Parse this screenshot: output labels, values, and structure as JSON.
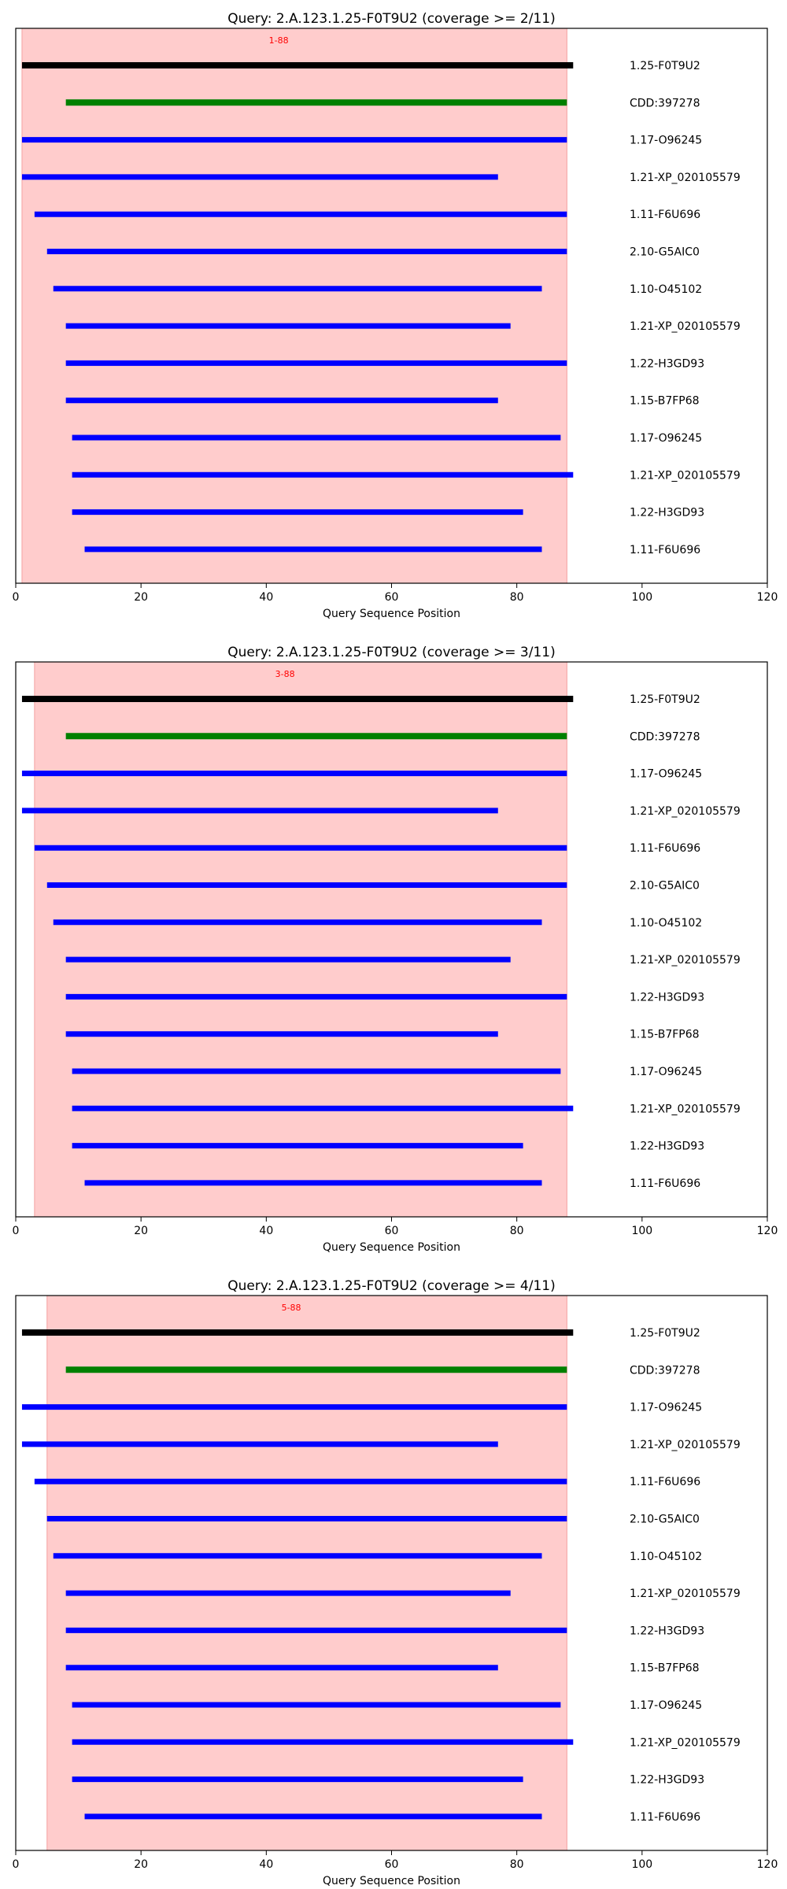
{
  "chart_data": [
    {
      "type": "bar",
      "title": "Query: 2.A.123.1.25-F0T9U2 (coverage >= 2/11)",
      "xlabel": "Query Sequence Position",
      "ylabel": "",
      "xlim": [
        0,
        120
      ],
      "xticks": [
        "0",
        "20",
        "40",
        "60",
        "80",
        "100",
        "120"
      ],
      "region": {
        "start": 1,
        "end": 88,
        "label": "1-88",
        "color": "#ffcccc"
      },
      "colors": {
        "query": "#000000",
        "domain": "#008000",
        "hit": "#0000ff",
        "region_label": "#ff0000"
      },
      "rows": [
        {
          "label": "1.25-F0T9U2",
          "start": 1,
          "end": 89,
          "kind": "query"
        },
        {
          "label": "CDD:397278",
          "start": 8,
          "end": 88,
          "kind": "domain"
        },
        {
          "label": "1.17-O96245",
          "start": 1,
          "end": 88,
          "kind": "hit"
        },
        {
          "label": "1.21-XP_020105579",
          "start": 1,
          "end": 77,
          "kind": "hit"
        },
        {
          "label": "1.11-F6U696",
          "start": 3,
          "end": 88,
          "kind": "hit"
        },
        {
          "label": "2.10-G5AIC0",
          "start": 5,
          "end": 88,
          "kind": "hit"
        },
        {
          "label": "1.10-O45102",
          "start": 6,
          "end": 84,
          "kind": "hit"
        },
        {
          "label": "1.21-XP_020105579",
          "start": 8,
          "end": 79,
          "kind": "hit"
        },
        {
          "label": "1.22-H3GD93",
          "start": 8,
          "end": 88,
          "kind": "hit"
        },
        {
          "label": "1.15-B7FP68",
          "start": 8,
          "end": 77,
          "kind": "hit"
        },
        {
          "label": "1.17-O96245",
          "start": 9,
          "end": 87,
          "kind": "hit"
        },
        {
          "label": "1.21-XP_020105579",
          "start": 9,
          "end": 89,
          "kind": "hit"
        },
        {
          "label": "1.22-H3GD93",
          "start": 9,
          "end": 81,
          "kind": "hit"
        },
        {
          "label": "1.11-F6U696",
          "start": 11,
          "end": 84,
          "kind": "hit"
        }
      ]
    },
    {
      "type": "bar",
      "title": "Query: 2.A.123.1.25-F0T9U2 (coverage >= 3/11)",
      "xlabel": "Query Sequence Position",
      "ylabel": "",
      "xlim": [
        0,
        120
      ],
      "xticks": [
        "0",
        "20",
        "40",
        "60",
        "80",
        "100",
        "120"
      ],
      "region": {
        "start": 3,
        "end": 88,
        "label": "3-88",
        "color": "#ffcccc"
      },
      "colors": {
        "query": "#000000",
        "domain": "#008000",
        "hit": "#0000ff",
        "region_label": "#ff0000"
      },
      "rows": [
        {
          "label": "1.25-F0T9U2",
          "start": 1,
          "end": 89,
          "kind": "query"
        },
        {
          "label": "CDD:397278",
          "start": 8,
          "end": 88,
          "kind": "domain"
        },
        {
          "label": "1.17-O96245",
          "start": 1,
          "end": 88,
          "kind": "hit"
        },
        {
          "label": "1.21-XP_020105579",
          "start": 1,
          "end": 77,
          "kind": "hit"
        },
        {
          "label": "1.11-F6U696",
          "start": 3,
          "end": 88,
          "kind": "hit"
        },
        {
          "label": "2.10-G5AIC0",
          "start": 5,
          "end": 88,
          "kind": "hit"
        },
        {
          "label": "1.10-O45102",
          "start": 6,
          "end": 84,
          "kind": "hit"
        },
        {
          "label": "1.21-XP_020105579",
          "start": 8,
          "end": 79,
          "kind": "hit"
        },
        {
          "label": "1.22-H3GD93",
          "start": 8,
          "end": 88,
          "kind": "hit"
        },
        {
          "label": "1.15-B7FP68",
          "start": 8,
          "end": 77,
          "kind": "hit"
        },
        {
          "label": "1.17-O96245",
          "start": 9,
          "end": 87,
          "kind": "hit"
        },
        {
          "label": "1.21-XP_020105579",
          "start": 9,
          "end": 89,
          "kind": "hit"
        },
        {
          "label": "1.22-H3GD93",
          "start": 9,
          "end": 81,
          "kind": "hit"
        },
        {
          "label": "1.11-F6U696",
          "start": 11,
          "end": 84,
          "kind": "hit"
        }
      ]
    },
    {
      "type": "bar",
      "title": "Query: 2.A.123.1.25-F0T9U2 (coverage >= 4/11)",
      "xlabel": "Query Sequence Position",
      "ylabel": "",
      "xlim": [
        0,
        120
      ],
      "xticks": [
        "0",
        "20",
        "40",
        "60",
        "80",
        "100",
        "120"
      ],
      "region": {
        "start": 5,
        "end": 88,
        "label": "5-88",
        "color": "#ffcccc"
      },
      "colors": {
        "query": "#000000",
        "domain": "#008000",
        "hit": "#0000ff",
        "region_label": "#ff0000"
      },
      "rows": [
        {
          "label": "1.25-F0T9U2",
          "start": 1,
          "end": 89,
          "kind": "query"
        },
        {
          "label": "CDD:397278",
          "start": 8,
          "end": 88,
          "kind": "domain"
        },
        {
          "label": "1.17-O96245",
          "start": 1,
          "end": 88,
          "kind": "hit"
        },
        {
          "label": "1.21-XP_020105579",
          "start": 1,
          "end": 77,
          "kind": "hit"
        },
        {
          "label": "1.11-F6U696",
          "start": 3,
          "end": 88,
          "kind": "hit"
        },
        {
          "label": "2.10-G5AIC0",
          "start": 5,
          "end": 88,
          "kind": "hit"
        },
        {
          "label": "1.10-O45102",
          "start": 6,
          "end": 84,
          "kind": "hit"
        },
        {
          "label": "1.21-XP_020105579",
          "start": 8,
          "end": 79,
          "kind": "hit"
        },
        {
          "label": "1.22-H3GD93",
          "start": 8,
          "end": 88,
          "kind": "hit"
        },
        {
          "label": "1.15-B7FP68",
          "start": 8,
          "end": 77,
          "kind": "hit"
        },
        {
          "label": "1.17-O96245",
          "start": 9,
          "end": 87,
          "kind": "hit"
        },
        {
          "label": "1.21-XP_020105579",
          "start": 9,
          "end": 89,
          "kind": "hit"
        },
        {
          "label": "1.22-H3GD93",
          "start": 9,
          "end": 81,
          "kind": "hit"
        },
        {
          "label": "1.11-F6U696",
          "start": 11,
          "end": 84,
          "kind": "hit"
        }
      ]
    }
  ]
}
